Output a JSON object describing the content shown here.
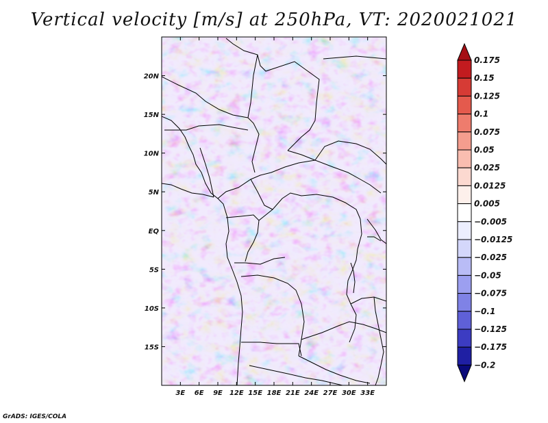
{
  "title": "Vertical velocity [m/s] at 250hPa, VT: 2020021021",
  "credit": "GrADS: IGES/COLA",
  "map": {
    "variable": "Vertical velocity",
    "units": "m/s",
    "level": "250hPa",
    "lon_range": [
      0,
      36
    ],
    "lat_range": [
      -20,
      25
    ],
    "x_ticks": [
      "3E",
      "6E",
      "9E",
      "12E",
      "15E",
      "18E",
      "21E",
      "24E",
      "27E",
      "30E",
      "33E"
    ],
    "x_tick_values": [
      3,
      6,
      9,
      12,
      15,
      18,
      21,
      24,
      27,
      30,
      33
    ],
    "y_ticks": [
      "20N",
      "15N",
      "10N",
      "5N",
      "EQ",
      "5S",
      "10S",
      "15S"
    ],
    "y_tick_values": [
      20,
      15,
      10,
      5,
      0,
      -5,
      -10,
      -15
    ]
  },
  "colorbar": {
    "labels": [
      "0.175",
      "0.15",
      "0.125",
      "0.1",
      "0.075",
      "0.05",
      "0.025",
      "0.0125",
      "0.005",
      "−0.005",
      "−0.0125",
      "−0.025",
      "−0.05",
      "−0.075",
      "−0.1",
      "−0.125",
      "−0.175",
      "−0.2"
    ],
    "colors": [
      "#a50f15",
      "#c21b1f",
      "#d63b35",
      "#e45a4d",
      "#ee7c6d",
      "#f49d8e",
      "#f9bdb0",
      "#fcd9d0",
      "#fdf0eb",
      "#ffffff",
      "#eceefe",
      "#d4d7fb",
      "#b9bcf6",
      "#9c9ff0",
      "#7f82e6",
      "#5f60d8",
      "#3c3cc2",
      "#1f1fa3",
      "#0a0a7a"
    ]
  }
}
